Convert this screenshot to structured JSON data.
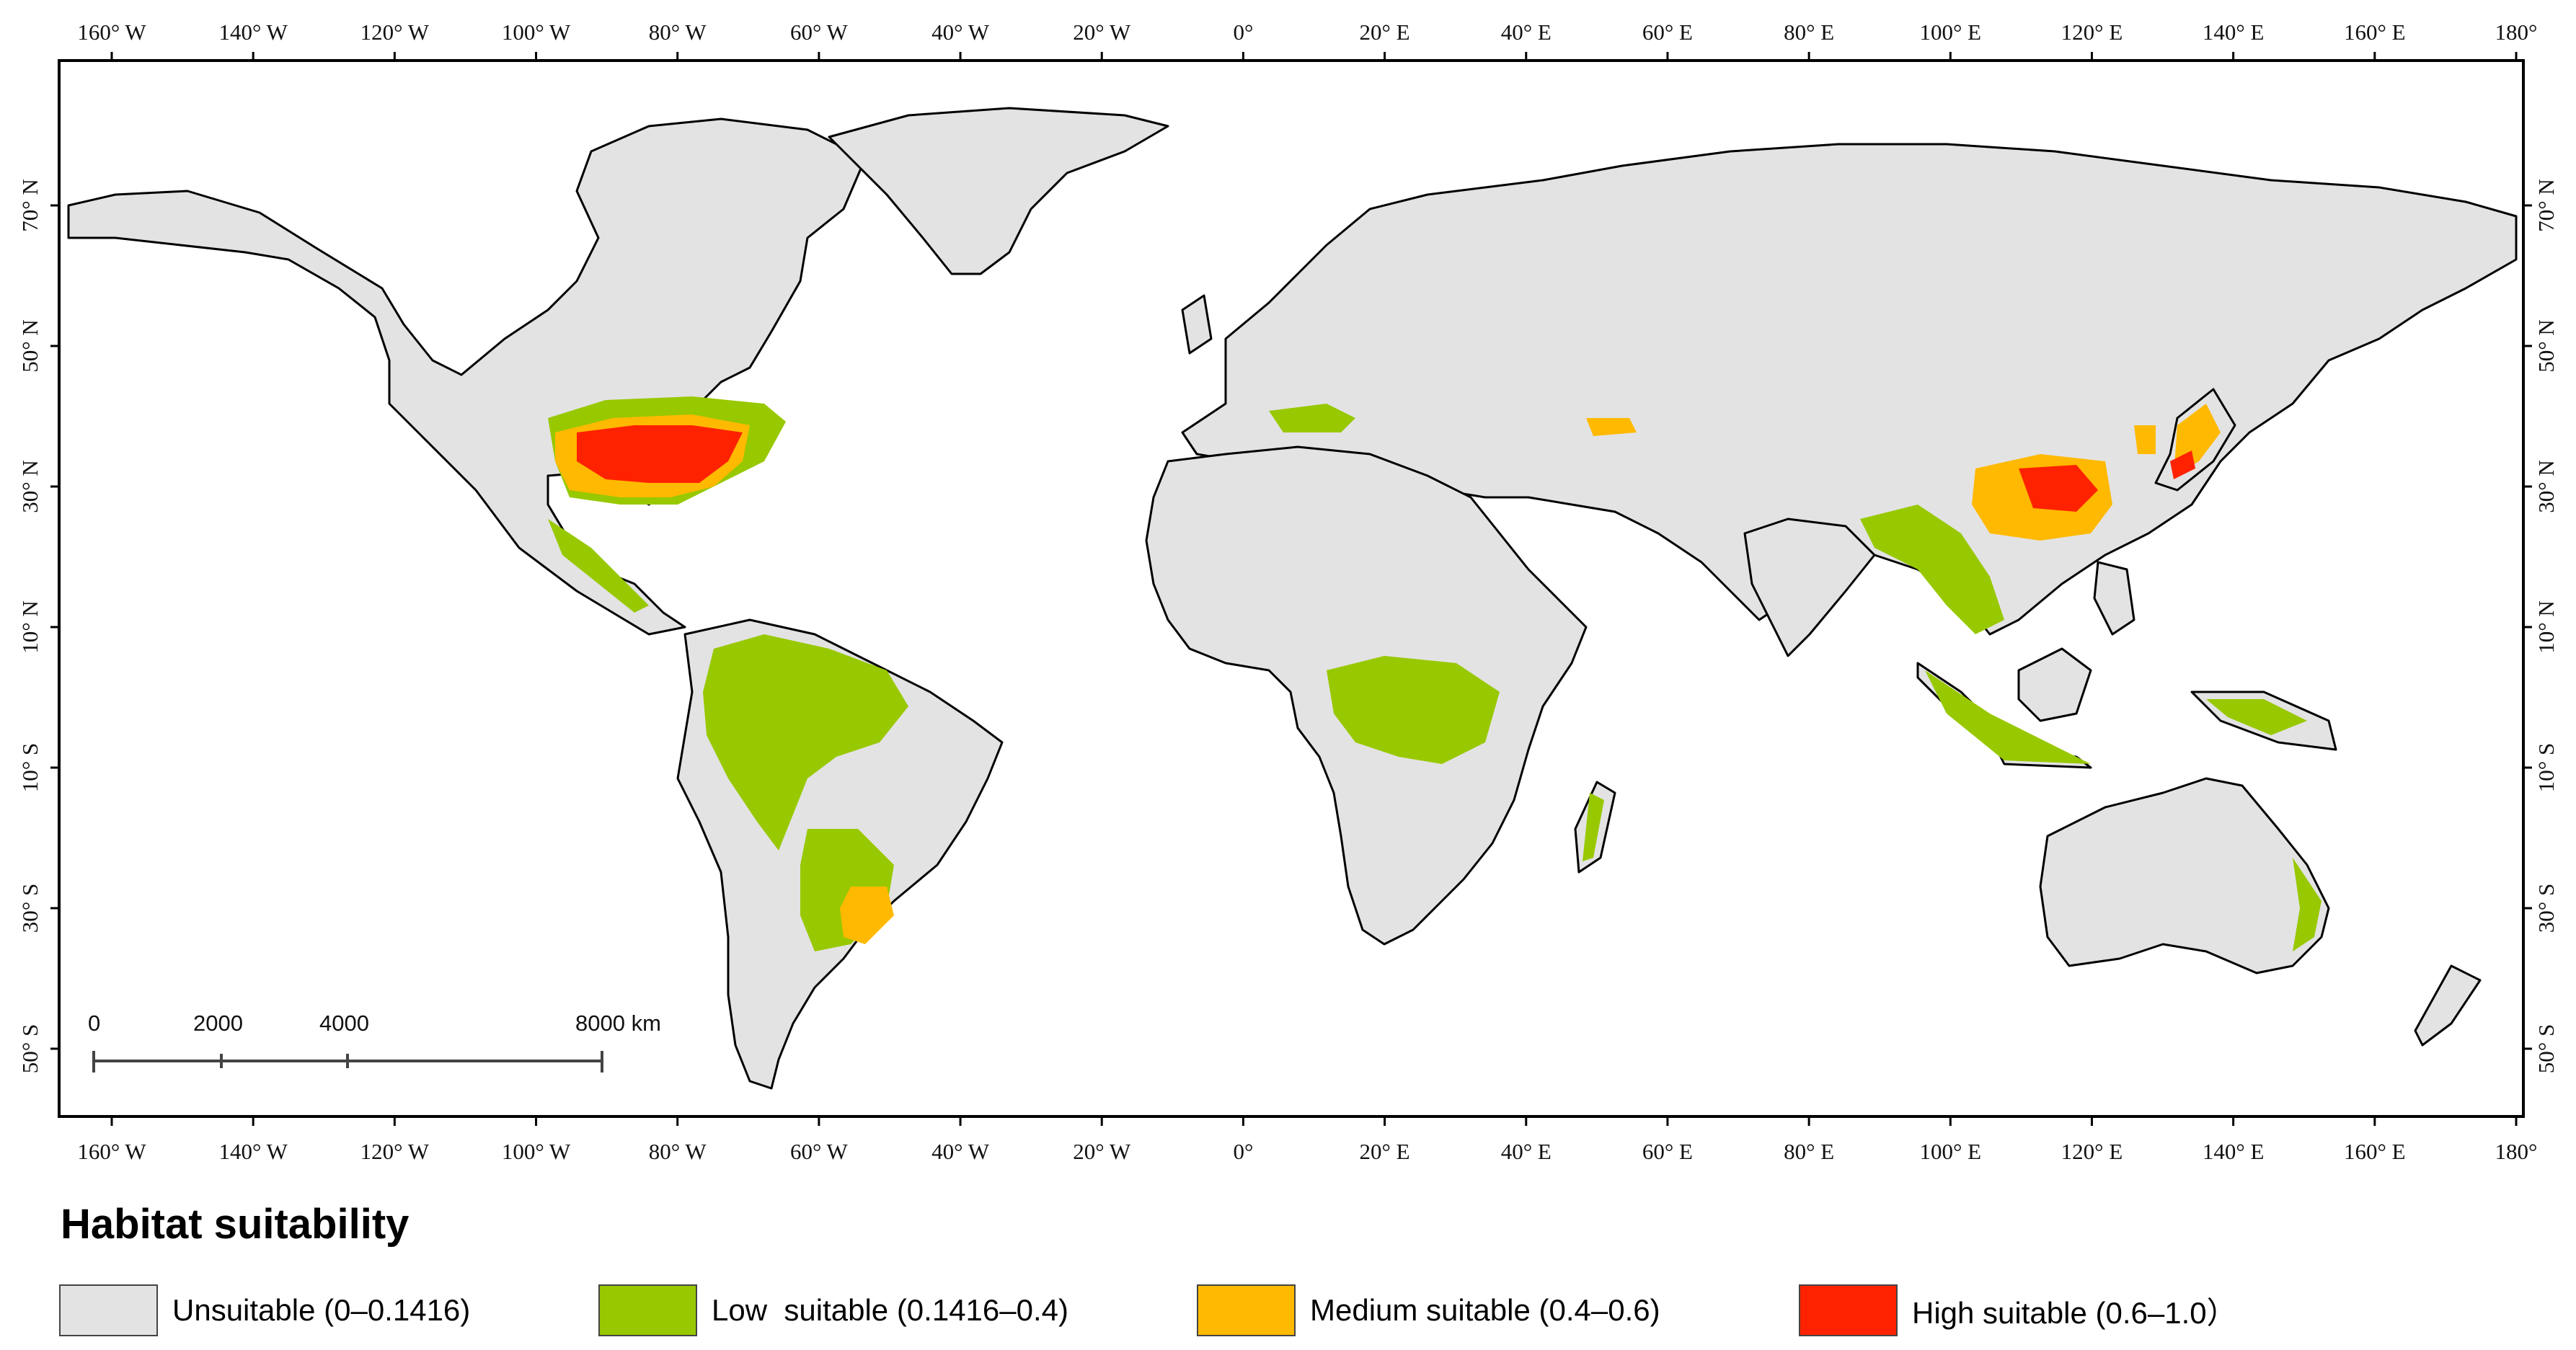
{
  "map": {
    "lon_ticks": [
      "160° W",
      "140° W",
      "120° W",
      "100° W",
      "80° W",
      "60° W",
      "40° W",
      "20° W",
      "0°",
      "20° E",
      "40° E",
      "60° E",
      "80° E",
      "100° E",
      "120° E",
      "140° E",
      "160° E",
      "180°"
    ],
    "lat_ticks": [
      "70° N",
      "50° N",
      "30° N",
      "10° N",
      "10° S",
      "30° S",
      "50° S"
    ],
    "scale_bar": {
      "labels": [
        "0",
        "2000",
        "4000",
        "8000 km"
      ]
    }
  },
  "colors": {
    "unsuitable": "#e3e3e3",
    "low": "#98c800",
    "medium": "#ffb900",
    "high": "#ff2200",
    "border": "#000000",
    "ocean": "#ffffff"
  },
  "legend": {
    "title": "Habitat suitability",
    "items": [
      {
        "label": "Unsuitable (0–0.1416)",
        "color": "#e3e3e3"
      },
      {
        "label": "Low  suitable (0.1416–0.4)",
        "color": "#98c800"
      },
      {
        "label": "Medium suitable (0.4–0.6)",
        "color": "#ffb900"
      },
      {
        "label": "High suitable (0.6–1.0）",
        "color": "#ff2200"
      }
    ]
  }
}
